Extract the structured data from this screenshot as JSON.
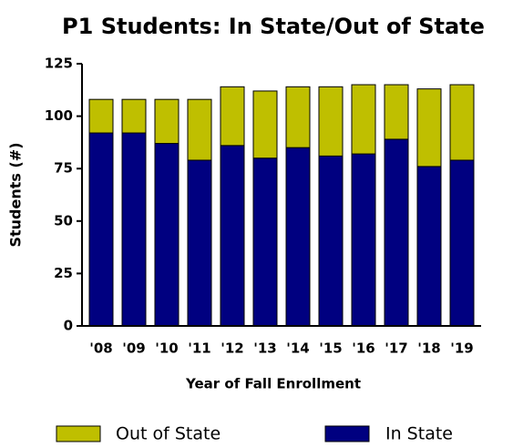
{
  "chart_data": {
    "type": "stacked_bar",
    "title": "P1 Students: In State/Out of State",
    "x_label": "Year of Fall Enrollment",
    "y_label": "Students (#)",
    "categories": [
      "'08",
      "'09",
      "'10",
      "'11",
      "'12",
      "'13",
      "'14",
      "'15",
      "'16",
      "'17",
      "'18",
      "'19"
    ],
    "series": [
      {
        "name": "In State",
        "color": "#000080",
        "values": [
          92,
          92,
          87,
          79,
          86,
          80,
          85,
          81,
          82,
          89,
          76,
          79
        ]
      },
      {
        "name": "Out of State",
        "color": "#bfbf00",
        "values": [
          16,
          16,
          21,
          29,
          28,
          32,
          29,
          33,
          33,
          26,
          37,
          36
        ]
      }
    ],
    "ylim": [
      0,
      125
    ],
    "yticks": [
      0,
      25,
      50,
      75,
      100,
      125
    ]
  }
}
